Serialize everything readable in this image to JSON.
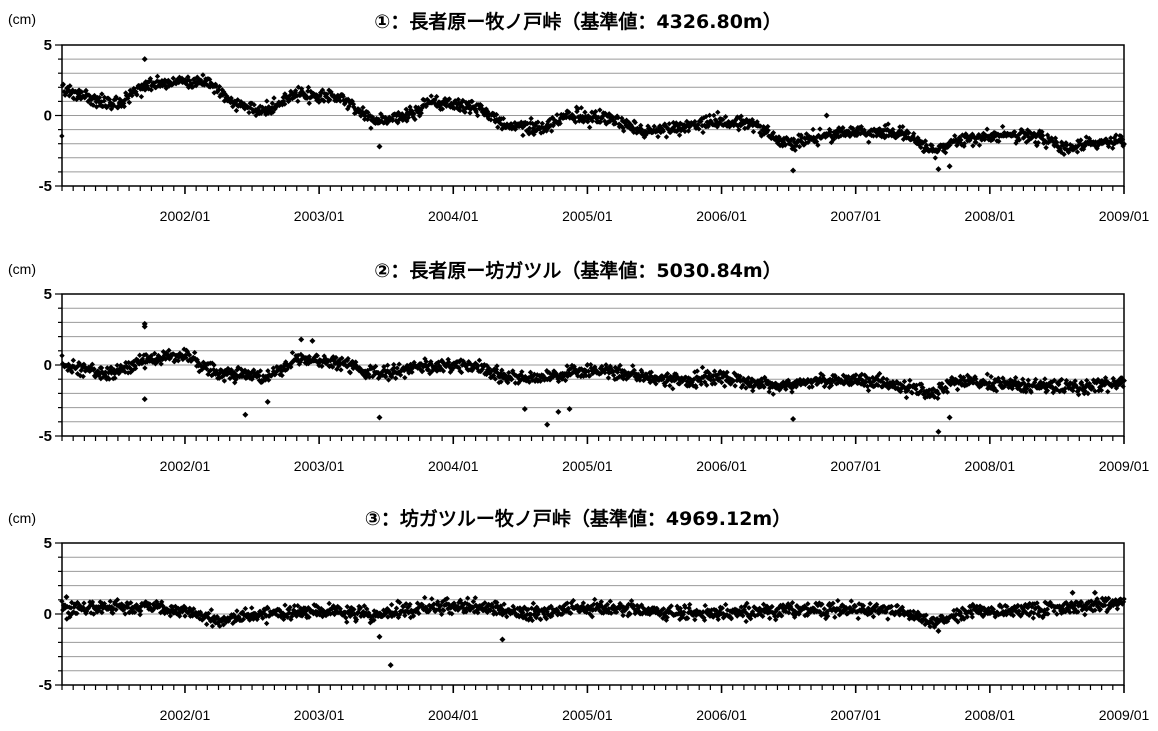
{
  "colors": {
    "marker": "#000000",
    "grid": "#9a9a9a",
    "frame": "#000000",
    "background": "#ffffff"
  },
  "chart_data": [
    {
      "type": "scatter",
      "title": "①：長者原ー牧ノ戸峠（基準値：4326.80m）",
      "ylabel": "(cm)",
      "ylim": [
        -5,
        5
      ],
      "yticks": [
        "5",
        "0",
        "-5"
      ],
      "xlim": [
        "2001-02",
        "2009-01"
      ],
      "xticklabels": [
        "2002/01",
        "2003/01",
        "2004/01",
        "2005/01",
        "2006/01",
        "2007/01",
        "2008/01",
        "2009/01"
      ],
      "grid": true,
      "marker": "diamond",
      "trend": [
        {
          "x": "2001-02",
          "y": 1.9
        },
        {
          "x": "2001-05",
          "y": 1.1
        },
        {
          "x": "2001-07",
          "y": 0.8
        },
        {
          "x": "2001-10",
          "y": 2.3
        },
        {
          "x": "2002-01",
          "y": 2.4
        },
        {
          "x": "2002-03",
          "y": 2.4
        },
        {
          "x": "2002-05",
          "y": 1.0
        },
        {
          "x": "2002-08",
          "y": 0.3
        },
        {
          "x": "2002-11",
          "y": 1.5
        },
        {
          "x": "2003-03",
          "y": 1.3
        },
        {
          "x": "2003-06",
          "y": -0.4
        },
        {
          "x": "2003-08",
          "y": -0.2
        },
        {
          "x": "2003-11",
          "y": 0.9
        },
        {
          "x": "2004-03",
          "y": 0.6
        },
        {
          "x": "2004-06",
          "y": -0.8
        },
        {
          "x": "2004-09",
          "y": -0.9
        },
        {
          "x": "2004-11",
          "y": 0.0
        },
        {
          "x": "2005-03",
          "y": -0.2
        },
        {
          "x": "2005-06",
          "y": -1.1
        },
        {
          "x": "2005-09",
          "y": -0.9
        },
        {
          "x": "2006-01",
          "y": -0.4
        },
        {
          "x": "2006-04",
          "y": -0.7
        },
        {
          "x": "2006-07",
          "y": -2.0
        },
        {
          "x": "2006-09",
          "y": -1.6
        },
        {
          "x": "2007-01",
          "y": -1.1
        },
        {
          "x": "2007-05",
          "y": -1.3
        },
        {
          "x": "2007-08",
          "y": -2.5
        },
        {
          "x": "2007-10",
          "y": -1.8
        },
        {
          "x": "2008-02",
          "y": -1.3
        },
        {
          "x": "2008-05",
          "y": -1.5
        },
        {
          "x": "2008-08",
          "y": -2.3
        },
        {
          "x": "2008-10",
          "y": -2.0
        },
        {
          "x": "2009-01",
          "y": -1.7
        }
      ],
      "outliers": [
        {
          "x": "2001-09",
          "y": 4.0
        },
        {
          "x": "2003-06",
          "y": -2.2
        },
        {
          "x": "2006-07",
          "y": -3.9
        },
        {
          "x": "2006-10",
          "y": 0.0
        },
        {
          "x": "2007-08",
          "y": -3.8
        },
        {
          "x": "2007-09",
          "y": -3.6
        }
      ]
    },
    {
      "type": "scatter",
      "title": "②：長者原ー坊ガツル（基準値：5030.84m）",
      "ylabel": "(cm)",
      "ylim": [
        -5,
        5
      ],
      "yticks": [
        "5",
        "0",
        "-5"
      ],
      "xlim": [
        "2001-02",
        "2009-01"
      ],
      "xticklabels": [
        "2002/01",
        "2003/01",
        "2004/01",
        "2005/01",
        "2006/01",
        "2007/01",
        "2008/01",
        "2009/01"
      ],
      "grid": true,
      "marker": "diamond",
      "trend": [
        {
          "x": "2001-02",
          "y": 0.0
        },
        {
          "x": "2001-06",
          "y": -0.6
        },
        {
          "x": "2001-10",
          "y": 0.4
        },
        {
          "x": "2002-01",
          "y": 0.6
        },
        {
          "x": "2002-04",
          "y": -0.6
        },
        {
          "x": "2002-08",
          "y": -0.9
        },
        {
          "x": "2002-11",
          "y": 0.3
        },
        {
          "x": "2003-03",
          "y": 0.2
        },
        {
          "x": "2003-06",
          "y": -0.6
        },
        {
          "x": "2003-10",
          "y": -0.1
        },
        {
          "x": "2004-02",
          "y": 0.0
        },
        {
          "x": "2004-06",
          "y": -0.9
        },
        {
          "x": "2004-09",
          "y": -1.0
        },
        {
          "x": "2004-12",
          "y": -0.4
        },
        {
          "x": "2005-04",
          "y": -0.5
        },
        {
          "x": "2005-08",
          "y": -1.1
        },
        {
          "x": "2006-01",
          "y": -0.9
        },
        {
          "x": "2006-06",
          "y": -1.5
        },
        {
          "x": "2006-10",
          "y": -1.1
        },
        {
          "x": "2007-03",
          "y": -1.2
        },
        {
          "x": "2007-08",
          "y": -2.0
        },
        {
          "x": "2007-10",
          "y": -1.2
        },
        {
          "x": "2008-04",
          "y": -1.4
        },
        {
          "x": "2008-09",
          "y": -1.6
        },
        {
          "x": "2009-01",
          "y": -1.2
        }
      ],
      "outliers": [
        {
          "x": "2001-09",
          "y": 2.9
        },
        {
          "x": "2001-09",
          "y": 2.7
        },
        {
          "x": "2001-09",
          "y": -2.4
        },
        {
          "x": "2002-06",
          "y": -3.5
        },
        {
          "x": "2002-08",
          "y": -2.6
        },
        {
          "x": "2002-11",
          "y": 1.8
        },
        {
          "x": "2002-12",
          "y": 1.7
        },
        {
          "x": "2003-06",
          "y": -3.7
        },
        {
          "x": "2004-07",
          "y": -3.1
        },
        {
          "x": "2004-09",
          "y": -4.2
        },
        {
          "x": "2004-10",
          "y": -3.3
        },
        {
          "x": "2004-11",
          "y": -3.1
        },
        {
          "x": "2006-07",
          "y": -3.8
        },
        {
          "x": "2007-08",
          "y": -4.7
        },
        {
          "x": "2007-09",
          "y": -3.7
        }
      ]
    },
    {
      "type": "scatter",
      "title": "③：坊ガツルー牧ノ戸峠（基準値：4969.12m）",
      "ylabel": "(cm)",
      "ylim": [
        -5,
        5
      ],
      "yticks": [
        "5",
        "0",
        "-5"
      ],
      "xlim": [
        "2001-02",
        "2009-01"
      ],
      "xticklabels": [
        "2002/01",
        "2003/01",
        "2004/01",
        "2005/01",
        "2006/01",
        "2007/01",
        "2008/01",
        "2009/01"
      ],
      "grid": true,
      "marker": "diamond",
      "trend": [
        {
          "x": "2001-02",
          "y": 0.3
        },
        {
          "x": "2001-07",
          "y": 0.5
        },
        {
          "x": "2002-01",
          "y": 0.2
        },
        {
          "x": "2002-04",
          "y": -0.5
        },
        {
          "x": "2002-07",
          "y": 0.0
        },
        {
          "x": "2003-01",
          "y": 0.2
        },
        {
          "x": "2003-06",
          "y": 0.0
        },
        {
          "x": "2003-11",
          "y": 0.5
        },
        {
          "x": "2004-03",
          "y": 0.5
        },
        {
          "x": "2004-08",
          "y": 0.0
        },
        {
          "x": "2005-01",
          "y": 0.4
        },
        {
          "x": "2005-06",
          "y": 0.3
        },
        {
          "x": "2005-11",
          "y": 0.0
        },
        {
          "x": "2006-05",
          "y": 0.2
        },
        {
          "x": "2006-10",
          "y": 0.3
        },
        {
          "x": "2007-04",
          "y": 0.3
        },
        {
          "x": "2007-08",
          "y": -0.6
        },
        {
          "x": "2007-11",
          "y": 0.2
        },
        {
          "x": "2008-06",
          "y": 0.3
        },
        {
          "x": "2009-01",
          "y": 0.8
        }
      ],
      "outliers": [
        {
          "x": "2001-02",
          "y": 1.2
        },
        {
          "x": "2003-06",
          "y": -1.6
        },
        {
          "x": "2003-07",
          "y": -3.6
        },
        {
          "x": "2004-05",
          "y": -1.8
        },
        {
          "x": "2007-08",
          "y": -1.2
        },
        {
          "x": "2008-08",
          "y": 1.5
        },
        {
          "x": "2008-10",
          "y": 1.5
        }
      ]
    }
  ]
}
